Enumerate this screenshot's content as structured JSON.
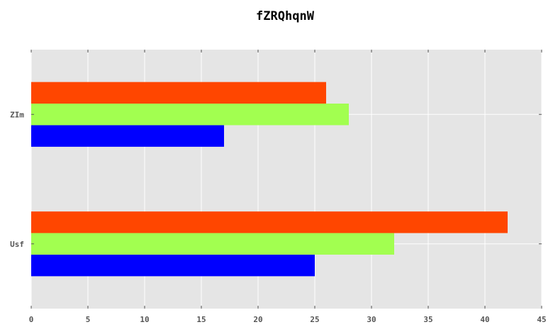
{
  "chart_data": {
    "type": "bar",
    "orientation": "horizontal",
    "title": "fZRQhqnW",
    "xlabel": "",
    "ylabel": "",
    "categories": [
      "Usf",
      "ZIm"
    ],
    "series": [
      {
        "values": [
          25,
          17
        ],
        "color": "#0000ff"
      },
      {
        "values": [
          32,
          28
        ],
        "color": "#a2ff50"
      },
      {
        "values": [
          42,
          26
        ],
        "color": "#ff4600"
      }
    ],
    "xlim": [
      0,
      45
    ],
    "xticks": [
      0,
      5,
      10,
      15,
      20,
      25,
      30,
      35,
      40,
      45
    ],
    "grid": true,
    "legend": "none",
    "background": "#e5e5e5",
    "grid_color": "#ffffff"
  }
}
